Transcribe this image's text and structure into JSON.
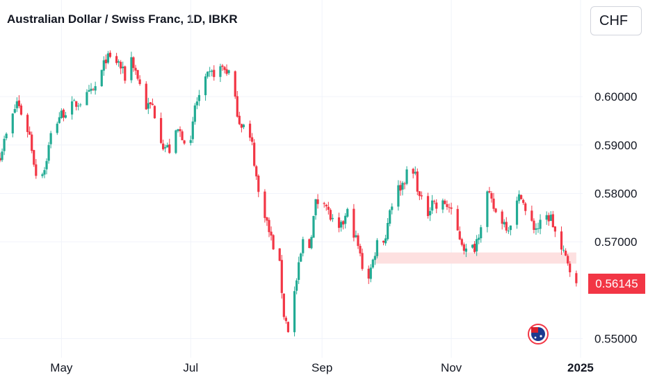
{
  "header": {
    "title": "Australian Dollar / Swiss Franc, 1D, IBKR",
    "currency_button": "CHF"
  },
  "price_label": "0.56145",
  "colors": {
    "up": "#22ab94",
    "down": "#f23645",
    "zone": "#fde0e0",
    "grid": "#f0f3fa"
  },
  "icons": {
    "event_marker": "australia-flag-event-icon"
  },
  "chart_data": {
    "type": "candlestick",
    "title": "Australian Dollar / Swiss Franc, 1D, IBKR",
    "ylim": [
      0.5485,
      0.6135
    ],
    "yticks": [
      0.55,
      0.57,
      0.58,
      0.59,
      0.6
    ],
    "ytick_labels": [
      "0.55000",
      "0.57000",
      "0.58000",
      "0.59000",
      "0.60000"
    ],
    "xticks": [
      {
        "label": "May",
        "date": "2024-05-01"
      },
      {
        "label": "Jul",
        "date": "2024-07-01"
      },
      {
        "label": "Sep",
        "date": "2024-09-01"
      },
      {
        "label": "Nov",
        "date": "2024-11-01"
      },
      {
        "label": "2025",
        "date": "2025-01-01"
      }
    ],
    "x_range": [
      "2024-04-02",
      "2025-01-02"
    ],
    "last_price": 0.56145,
    "support_zone": {
      "from": "2024-09-26",
      "to": "2024-12-30",
      "low": 0.5655,
      "high": 0.5678
    },
    "event_marker_date": "2024-12-12",
    "grid": true,
    "path": [
      [
        "2024-04-02",
        0.588
      ],
      [
        "2024-04-08",
        0.596
      ],
      [
        "2024-04-10",
        0.599
      ],
      [
        "2024-04-16",
        0.592
      ],
      [
        "2024-04-19",
        0.584
      ],
      [
        "2024-04-23",
        0.585
      ],
      [
        "2024-04-26",
        0.592
      ],
      [
        "2024-04-30",
        0.596
      ],
      [
        "2024-05-06",
        0.598
      ],
      [
        "2024-05-10",
        0.599
      ],
      [
        "2024-05-16",
        0.601
      ],
      [
        "2024-05-20",
        0.605
      ],
      [
        "2024-05-22",
        0.608
      ],
      [
        "2024-05-28",
        0.607
      ],
      [
        "2024-05-31",
        0.604
      ],
      [
        "2024-06-03",
        0.608
      ],
      [
        "2024-06-06",
        0.604
      ],
      [
        "2024-06-10",
        0.598
      ],
      [
        "2024-06-13",
        0.598
      ],
      [
        "2024-06-18",
        0.59
      ],
      [
        "2024-06-21",
        0.589
      ],
      [
        "2024-06-25",
        0.593
      ],
      [
        "2024-06-27",
        0.592
      ],
      [
        "2024-07-01",
        0.59
      ],
      [
        "2024-07-03",
        0.598
      ],
      [
        "2024-07-09",
        0.604
      ],
      [
        "2024-07-12",
        0.605
      ],
      [
        "2024-07-16",
        0.606
      ],
      [
        "2024-07-19",
        0.605
      ],
      [
        "2024-07-24",
        0.595
      ],
      [
        "2024-07-26",
        0.594
      ],
      [
        "2024-07-30",
        0.59
      ],
      [
        "2024-08-02",
        0.58
      ],
      [
        "2024-08-05",
        0.576
      ],
      [
        "2024-08-07",
        0.572
      ],
      [
        "2024-08-12",
        0.565
      ],
      [
        "2024-08-14",
        0.555
      ],
      [
        "2024-08-16",
        0.552
      ],
      [
        "2024-08-20",
        0.562
      ],
      [
        "2024-08-23",
        0.57
      ],
      [
        "2024-08-26",
        0.569
      ],
      [
        "2024-08-29",
        0.578
      ],
      [
        "2024-09-02",
        0.579
      ],
      [
        "2024-09-04",
        0.576
      ],
      [
        "2024-09-06",
        0.574
      ],
      [
        "2024-09-09",
        0.572
      ],
      [
        "2024-09-11",
        0.574
      ],
      [
        "2024-09-13",
        0.576
      ],
      [
        "2024-09-16",
        0.572
      ],
      [
        "2024-09-18",
        0.569
      ],
      [
        "2024-09-20",
        0.565
      ],
      [
        "2024-09-23",
        0.563
      ],
      [
        "2024-09-25",
        0.566
      ],
      [
        "2024-09-27",
        0.57
      ],
      [
        "2024-10-01",
        0.571
      ],
      [
        "2024-10-03",
        0.577
      ],
      [
        "2024-10-07",
        0.581
      ],
      [
        "2024-10-09",
        0.582
      ],
      [
        "2024-10-11",
        0.584
      ],
      [
        "2024-10-15",
        0.584
      ],
      [
        "2024-10-17",
        0.579
      ],
      [
        "2024-10-21",
        0.576
      ],
      [
        "2024-10-23",
        0.579
      ],
      [
        "2024-10-25",
        0.577
      ],
      [
        "2024-10-29",
        0.578
      ],
      [
        "2024-10-31",
        0.577
      ],
      [
        "2024-11-04",
        0.572
      ],
      [
        "2024-11-06",
        0.57
      ],
      [
        "2024-11-08",
        0.568
      ],
      [
        "2024-11-12",
        0.569
      ],
      [
        "2024-11-14",
        0.572
      ],
      [
        "2024-11-18",
        0.58
      ],
      [
        "2024-11-20",
        0.578
      ],
      [
        "2024-11-22",
        0.576
      ],
      [
        "2024-11-26",
        0.574
      ],
      [
        "2024-11-28",
        0.573
      ],
      [
        "2024-12-02",
        0.578
      ],
      [
        "2024-12-04",
        0.58
      ],
      [
        "2024-12-06",
        0.576
      ],
      [
        "2024-12-10",
        0.573
      ],
      [
        "2024-12-12",
        0.573
      ],
      [
        "2024-12-16",
        0.575
      ],
      [
        "2024-12-18",
        0.575
      ],
      [
        "2024-12-20",
        0.572
      ],
      [
        "2024-12-23",
        0.568
      ],
      [
        "2024-12-26",
        0.566
      ],
      [
        "2024-12-30",
        0.5615
      ]
    ]
  }
}
